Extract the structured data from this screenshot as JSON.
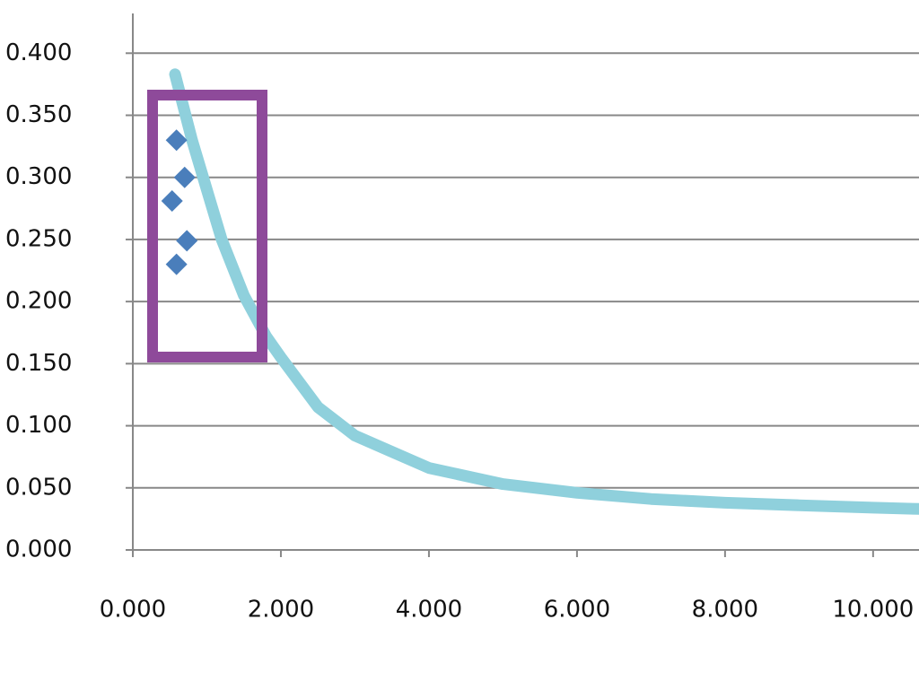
{
  "chart_data": {
    "type": "scatter",
    "xlim": [
      0,
      10.62
    ],
    "ylim": [
      0,
      0.432
    ],
    "xticks": [
      {
        "value": 0,
        "label": "0.000"
      },
      {
        "value": 2,
        "label": "2.000"
      },
      {
        "value": 4,
        "label": "4.000"
      },
      {
        "value": 6,
        "label": "6.000"
      },
      {
        "value": 8,
        "label": "8.000"
      },
      {
        "value": 10,
        "label": "10.000"
      }
    ],
    "yticks": [
      {
        "value": 0,
        "label": "0.000"
      },
      {
        "value": 0.05,
        "label": "0.050"
      },
      {
        "value": 0.1,
        "label": "0.100"
      },
      {
        "value": 0.15,
        "label": "0.150"
      },
      {
        "value": 0.2,
        "label": "0.200"
      },
      {
        "value": 0.25,
        "label": "0.250"
      },
      {
        "value": 0.3,
        "label": "0.300"
      },
      {
        "value": 0.35,
        "label": "0.350"
      },
      {
        "value": 0.4,
        "label": "0.400"
      }
    ],
    "grid": true,
    "series": [
      {
        "type": "scatter",
        "color": "#4a7ebb",
        "x": [
          0.59,
          0.7,
          0.53,
          0.73,
          0.59
        ],
        "values": [
          0.33,
          0.3,
          0.281,
          0.249,
          0.23
        ]
      },
      {
        "type": "line",
        "color": "#8fd0dc",
        "x": [
          0.57,
          0.8,
          1.0,
          1.2,
          1.5,
          1.8,
          2.0,
          2.5,
          3,
          4,
          5,
          6,
          7,
          8,
          9,
          10,
          10.62
        ],
        "values": [
          0.383,
          0.33,
          0.29,
          0.25,
          0.205,
          0.172,
          0.155,
          0.115,
          0.092,
          0.066,
          0.053,
          0.046,
          0.041,
          0.038,
          0.036,
          0.034,
          0.033
        ]
      }
    ]
  }
}
